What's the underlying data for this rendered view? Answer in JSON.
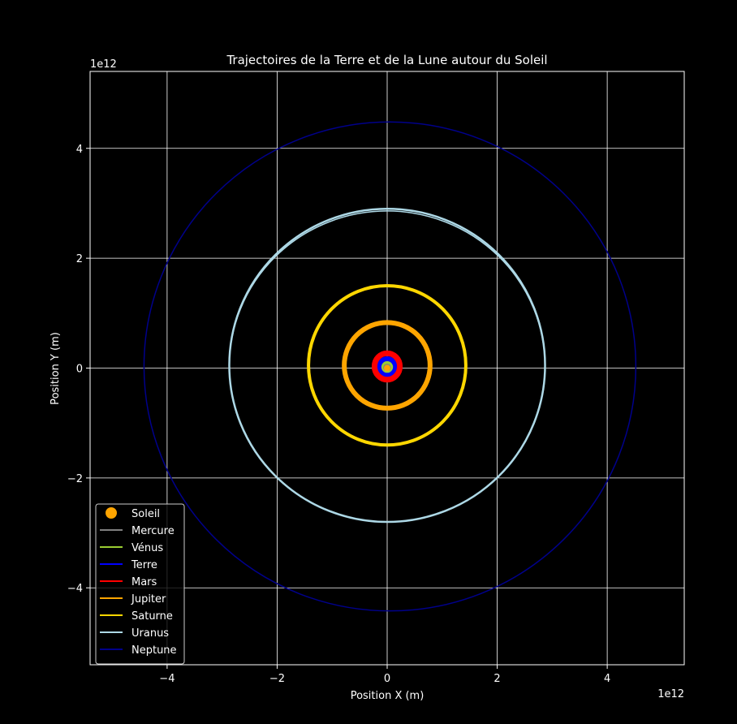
{
  "chart_data": {
    "type": "line",
    "title": "Trajectoires de la Terre et de la Lune autour du Soleil",
    "xlabel": "Position X (m)",
    "ylabel": "Position Y (m)",
    "x_offset_label": "1e12",
    "y_offset_label": "1e12",
    "xlim": [
      -5.4,
      5.4
    ],
    "ylim": [
      -5.4,
      5.4
    ],
    "x_ticks": [
      -4,
      -2,
      0,
      2,
      4
    ],
    "y_ticks": [
      -4,
      -2,
      0,
      2,
      4
    ],
    "x_tick_labels": [
      "−4",
      "−2",
      "0",
      "2",
      "4"
    ],
    "y_tick_labels": [
      "−4",
      "−2",
      "0",
      "2",
      "4"
    ],
    "grid": true,
    "legend_position": "lower-left",
    "background": "#000000",
    "foreground": "#ffffff",
    "units_note": "positions in units of 1e12 m",
    "sun": {
      "name": "Soleil",
      "x": 0,
      "y": 0,
      "color": "#ffa500"
    },
    "series": [
      {
        "name": "Mercure",
        "color": "#808080",
        "rx": 0.058,
        "cx": 0.0,
        "ry": 0.058,
        "cy": 0.0
      },
      {
        "name": "Vénus",
        "color": "#9acd32",
        "rx": 0.108,
        "cx": 0.0,
        "ry": 0.105,
        "cy": 0.01
      },
      {
        "name": "Terre",
        "color": "#0000ff",
        "rx": 0.15,
        "cx": 0.0,
        "ry": 0.15,
        "cy": 0.02
      },
      {
        "name": "Mars",
        "color": "#ff0000",
        "rx": 0.23,
        "cx": 0.0,
        "ry": 0.24,
        "cy": 0.03
      },
      {
        "name": "Jupiter",
        "color": "#ffa500",
        "rx": 0.78,
        "cx": 0.0,
        "ry": 0.78,
        "cy": 0.05
      },
      {
        "name": "Saturne",
        "color": "#ffd700",
        "rx": 1.43,
        "cx": 0.0,
        "ry": 1.45,
        "cy": 0.05
      },
      {
        "name": "Uranus",
        "color": "#add8e6",
        "rx": 2.87,
        "cx": 0.0,
        "ry": 2.85,
        "cy": 0.05
      },
      {
        "name": "Neptune",
        "color": "#00008b",
        "rx": 4.47,
        "cx": 0.05,
        "ry": 4.45,
        "cy": 0.03
      }
    ]
  }
}
